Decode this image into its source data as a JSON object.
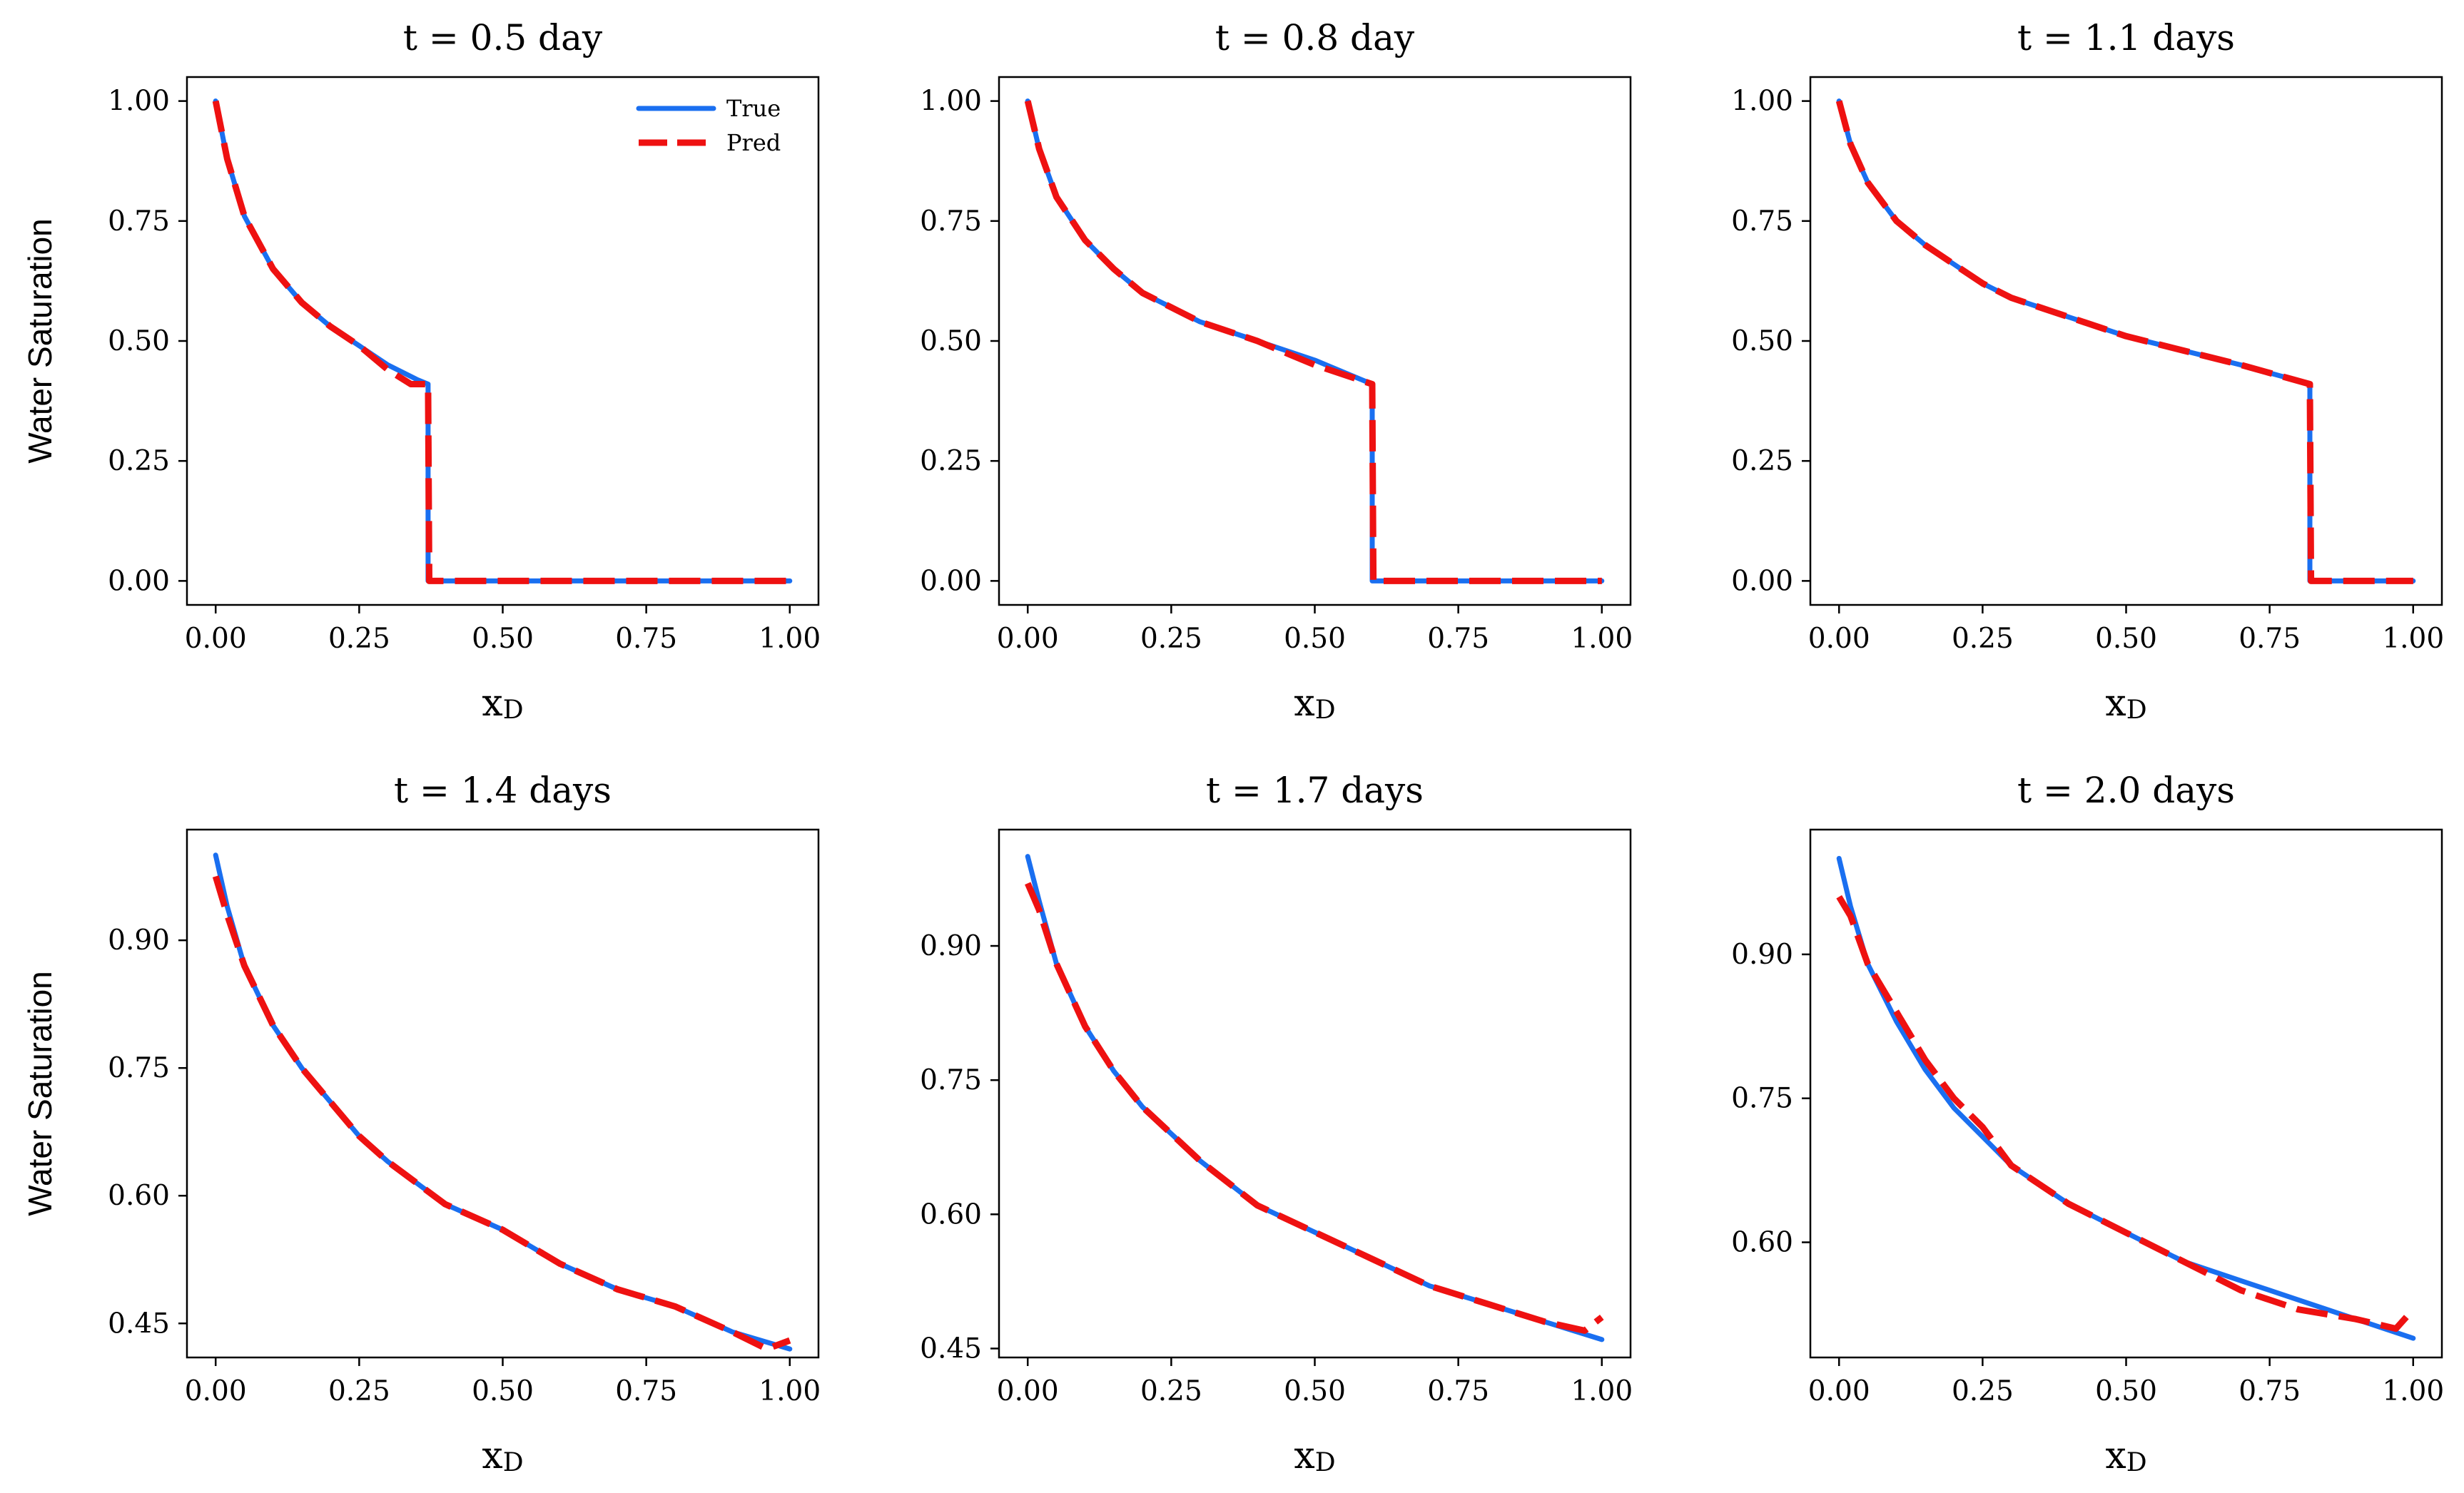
{
  "figure": {
    "legend": {
      "true_label": "True",
      "pred_label": "Pred"
    },
    "colors": {
      "true": "#1a6ff0",
      "pred": "#ee1111"
    }
  },
  "chart_data": [
    {
      "type": "line",
      "title": "t = 0.5 day",
      "xlabel": "x",
      "xlabel_sub": "D",
      "ylabel": "Water Saturation",
      "xlim": [
        -0.05,
        1.05
      ],
      "ylim": [
        -0.05,
        1.05
      ],
      "xticks": [
        0.0,
        0.25,
        0.5,
        0.75,
        1.0
      ],
      "xtick_labels": [
        "0.00",
        "0.25",
        "0.50",
        "0.75",
        "1.00"
      ],
      "yticks": [
        0.0,
        0.25,
        0.5,
        0.75,
        1.0
      ],
      "ytick_labels": [
        "0.00",
        "0.25",
        "0.50",
        "0.75",
        "1.00"
      ],
      "series": [
        {
          "name": "True",
          "x": [
            0,
            0.02,
            0.05,
            0.1,
            0.15,
            0.2,
            0.25,
            0.3,
            0.35,
            0.37,
            0.37,
            0.5,
            0.75,
            1.0
          ],
          "y": [
            1.0,
            0.88,
            0.76,
            0.65,
            0.58,
            0.53,
            0.49,
            0.45,
            0.42,
            0.41,
            0.0,
            0.0,
            0.0,
            0.0
          ]
        },
        {
          "name": "Pred",
          "x": [
            0,
            0.02,
            0.05,
            0.1,
            0.15,
            0.2,
            0.25,
            0.3,
            0.34,
            0.37,
            0.372,
            0.5,
            0.75,
            1.0
          ],
          "y": [
            1.0,
            0.88,
            0.76,
            0.65,
            0.58,
            0.53,
            0.49,
            0.44,
            0.41,
            0.41,
            0.0,
            0.0,
            0.0,
            0.0
          ]
        }
      ]
    },
    {
      "type": "line",
      "title": "t = 0.8 day",
      "xlabel": "x",
      "xlabel_sub": "D",
      "ylabel": "",
      "xlim": [
        -0.05,
        1.05
      ],
      "ylim": [
        -0.05,
        1.05
      ],
      "xticks": [
        0.0,
        0.25,
        0.5,
        0.75,
        1.0
      ],
      "xtick_labels": [
        "0.00",
        "0.25",
        "0.50",
        "0.75",
        "1.00"
      ],
      "yticks": [
        0.0,
        0.25,
        0.5,
        0.75,
        1.0
      ],
      "ytick_labels": [
        "0.00",
        "0.25",
        "0.50",
        "0.75",
        "1.00"
      ],
      "series": [
        {
          "name": "True",
          "x": [
            0,
            0.02,
            0.05,
            0.1,
            0.15,
            0.2,
            0.25,
            0.3,
            0.4,
            0.5,
            0.6,
            0.6,
            0.75,
            1.0
          ],
          "y": [
            1.0,
            0.9,
            0.8,
            0.71,
            0.65,
            0.6,
            0.57,
            0.54,
            0.5,
            0.46,
            0.41,
            0.0,
            0.0,
            0.0
          ]
        },
        {
          "name": "Pred",
          "x": [
            0,
            0.02,
            0.05,
            0.1,
            0.15,
            0.2,
            0.25,
            0.3,
            0.4,
            0.5,
            0.6,
            0.602,
            0.75,
            1.0
          ],
          "y": [
            1.0,
            0.9,
            0.8,
            0.71,
            0.65,
            0.6,
            0.57,
            0.54,
            0.5,
            0.45,
            0.41,
            0.0,
            0.0,
            0.0
          ]
        }
      ]
    },
    {
      "type": "line",
      "title": "t = 1.1 days",
      "xlabel": "x",
      "xlabel_sub": "D",
      "ylabel": "",
      "xlim": [
        -0.05,
        1.05
      ],
      "ylim": [
        -0.05,
        1.05
      ],
      "xticks": [
        0.0,
        0.25,
        0.5,
        0.75,
        1.0
      ],
      "xtick_labels": [
        "0.00",
        "0.25",
        "0.50",
        "0.75",
        "1.00"
      ],
      "yticks": [
        0.0,
        0.25,
        0.5,
        0.75,
        1.0
      ],
      "ytick_labels": [
        "0.00",
        "0.25",
        "0.50",
        "0.75",
        "1.00"
      ],
      "series": [
        {
          "name": "True",
          "x": [
            0,
            0.02,
            0.05,
            0.1,
            0.15,
            0.2,
            0.25,
            0.3,
            0.4,
            0.5,
            0.6,
            0.7,
            0.82,
            0.82,
            1.0
          ],
          "y": [
            1.0,
            0.91,
            0.83,
            0.75,
            0.7,
            0.66,
            0.62,
            0.59,
            0.55,
            0.51,
            0.48,
            0.45,
            0.41,
            0.0,
            0.0
          ]
        },
        {
          "name": "Pred",
          "x": [
            0,
            0.02,
            0.05,
            0.1,
            0.15,
            0.2,
            0.25,
            0.3,
            0.4,
            0.5,
            0.6,
            0.7,
            0.82,
            0.822,
            1.0
          ],
          "y": [
            1.0,
            0.91,
            0.83,
            0.75,
            0.7,
            0.66,
            0.62,
            0.59,
            0.55,
            0.51,
            0.48,
            0.45,
            0.41,
            0.0,
            0.0
          ]
        }
      ]
    },
    {
      "type": "line",
      "title": "t = 1.4 days",
      "xlabel": "x",
      "xlabel_sub": "D",
      "ylabel": "Water Saturation",
      "xlim": [
        -0.05,
        1.05
      ],
      "ylim": [
        0.41,
        1.03
      ],
      "xticks": [
        0.0,
        0.25,
        0.5,
        0.75,
        1.0
      ],
      "xtick_labels": [
        "0.00",
        "0.25",
        "0.50",
        "0.75",
        "1.00"
      ],
      "yticks": [
        0.45,
        0.6,
        0.75,
        0.9
      ],
      "ytick_labels": [
        "0.45",
        "0.60",
        "0.75",
        "0.90"
      ],
      "series": [
        {
          "name": "True",
          "x": [
            0,
            0.02,
            0.05,
            0.1,
            0.15,
            0.2,
            0.25,
            0.3,
            0.4,
            0.5,
            0.6,
            0.7,
            0.8,
            0.9,
            1.0
          ],
          "y": [
            1.0,
            0.94,
            0.87,
            0.8,
            0.75,
            0.71,
            0.67,
            0.64,
            0.59,
            0.56,
            0.52,
            0.49,
            0.47,
            0.44,
            0.42
          ]
        },
        {
          "name": "Pred",
          "x": [
            0,
            0.02,
            0.05,
            0.1,
            0.15,
            0.2,
            0.25,
            0.3,
            0.4,
            0.5,
            0.6,
            0.7,
            0.8,
            0.9,
            0.96,
            1.0
          ],
          "y": [
            0.975,
            0.93,
            0.87,
            0.8,
            0.75,
            0.71,
            0.67,
            0.64,
            0.59,
            0.56,
            0.52,
            0.49,
            0.47,
            0.44,
            0.42,
            0.43
          ]
        }
      ]
    },
    {
      "type": "line",
      "title": "t = 1.7 days",
      "xlabel": "x",
      "xlabel_sub": "D",
      "ylabel": "",
      "xlim": [
        -0.05,
        1.05
      ],
      "ylim": [
        0.44,
        1.03
      ],
      "xticks": [
        0.0,
        0.25,
        0.5,
        0.75,
        1.0
      ],
      "xtick_labels": [
        "0.00",
        "0.25",
        "0.50",
        "0.75",
        "1.00"
      ],
      "yticks": [
        0.45,
        0.6,
        0.75,
        0.9
      ],
      "ytick_labels": [
        "0.45",
        "0.60",
        "0.75",
        "0.90"
      ],
      "series": [
        {
          "name": "True",
          "x": [
            0,
            0.02,
            0.05,
            0.1,
            0.15,
            0.2,
            0.25,
            0.3,
            0.4,
            0.5,
            0.6,
            0.7,
            0.8,
            0.9,
            1.0
          ],
          "y": [
            1.0,
            0.95,
            0.88,
            0.81,
            0.76,
            0.72,
            0.69,
            0.66,
            0.61,
            0.58,
            0.55,
            0.52,
            0.5,
            0.48,
            0.46
          ]
        },
        {
          "name": "Pred",
          "x": [
            0,
            0.02,
            0.05,
            0.1,
            0.15,
            0.2,
            0.25,
            0.3,
            0.4,
            0.5,
            0.6,
            0.7,
            0.8,
            0.9,
            0.97,
            1.0
          ],
          "y": [
            0.97,
            0.94,
            0.88,
            0.81,
            0.76,
            0.72,
            0.69,
            0.66,
            0.61,
            0.58,
            0.55,
            0.52,
            0.5,
            0.48,
            0.47,
            0.485
          ]
        }
      ]
    },
    {
      "type": "line",
      "title": "t = 2.0 days",
      "xlabel": "x",
      "xlabel_sub": "D",
      "ylabel": "",
      "xlim": [
        -0.05,
        1.05
      ],
      "ylim": [
        0.48,
        1.03
      ],
      "xticks": [
        0.0,
        0.25,
        0.5,
        0.75,
        1.0
      ],
      "xtick_labels": [
        "0.00",
        "0.25",
        "0.50",
        "0.75",
        "1.00"
      ],
      "yticks": [
        0.6,
        0.75,
        0.9
      ],
      "ytick_labels": [
        "0.60",
        "0.75",
        "0.90"
      ],
      "series": [
        {
          "name": "True",
          "x": [
            0,
            0.02,
            0.05,
            0.1,
            0.15,
            0.2,
            0.25,
            0.3,
            0.4,
            0.5,
            0.6,
            0.7,
            0.8,
            0.9,
            1.0
          ],
          "y": [
            1.0,
            0.95,
            0.89,
            0.83,
            0.78,
            0.74,
            0.71,
            0.68,
            0.64,
            0.61,
            0.58,
            0.56,
            0.54,
            0.52,
            0.5
          ]
        },
        {
          "name": "Pred",
          "x": [
            0,
            0.02,
            0.05,
            0.1,
            0.15,
            0.2,
            0.25,
            0.3,
            0.4,
            0.5,
            0.6,
            0.7,
            0.8,
            0.9,
            0.97,
            1.0
          ],
          "y": [
            0.96,
            0.94,
            0.89,
            0.84,
            0.79,
            0.75,
            0.72,
            0.68,
            0.64,
            0.61,
            0.58,
            0.55,
            0.53,
            0.52,
            0.51,
            0.53
          ]
        }
      ]
    }
  ]
}
